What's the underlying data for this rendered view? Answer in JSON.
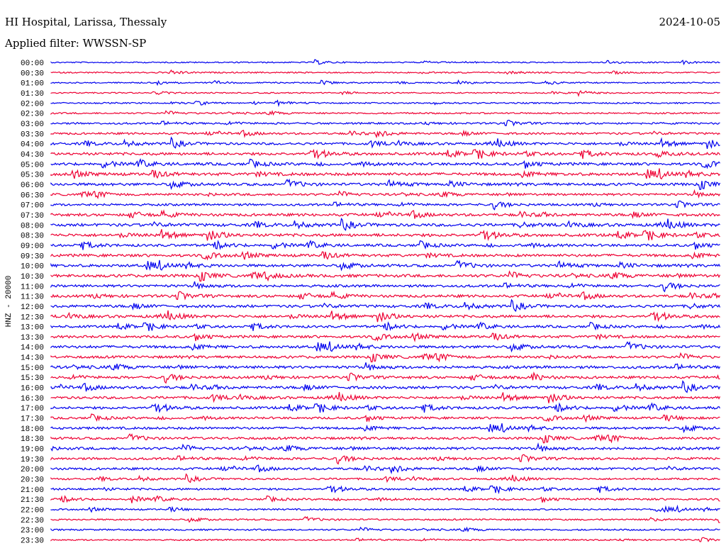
{
  "header": {
    "station": "HI Hospital, Larissa, Thessaly",
    "date": "2024-10-05",
    "filter": "Applied filter: WWSSN-SP"
  },
  "chart_data": {
    "type": "line",
    "title": "HI Hospital, Larissa, Thessaly",
    "subtitle": "Applied filter: WWSSN-SP",
    "date": "2024-10-05",
    "ylabel": "HNZ - 20000",
    "xlabel": "",
    "grid": false,
    "legend": "none",
    "trace_colors": [
      "#0000ee",
      "#ee0033"
    ],
    "time_labels": [
      "00:00",
      "00:30",
      "01:00",
      "01:30",
      "02:00",
      "02:30",
      "03:00",
      "03:30",
      "04:00",
      "04:30",
      "05:00",
      "05:30",
      "06:00",
      "06:30",
      "07:00",
      "07:30",
      "08:00",
      "08:30",
      "09:00",
      "09:30",
      "10:00",
      "10:30",
      "11:00",
      "11:30",
      "12:00",
      "12:30",
      "13:00",
      "13:30",
      "14:00",
      "14:30",
      "15:00",
      "15:30",
      "16:00",
      "16:30",
      "17:00",
      "17:30",
      "18:00",
      "18:30",
      "19:00",
      "19:30",
      "20:00",
      "20:30",
      "21:00",
      "21:30",
      "22:00",
      "22:30",
      "23:00",
      "23:30"
    ],
    "noise_level": [
      0.1,
      0.14,
      0.12,
      0.1,
      0.16,
      0.2,
      0.3,
      0.35,
      0.45,
      0.55,
      0.55,
      0.6,
      0.55,
      0.4,
      0.4,
      0.55,
      0.6,
      0.6,
      0.5,
      0.55,
      0.55,
      0.6,
      0.5,
      0.55,
      0.55,
      0.55,
      0.45,
      0.5,
      0.55,
      0.5,
      0.55,
      0.5,
      0.55,
      0.5,
      0.5,
      0.4,
      0.45,
      0.45,
      0.5,
      0.45,
      0.45,
      0.3,
      0.35,
      0.3,
      0.2,
      0.2,
      0.2,
      0.15
    ]
  }
}
